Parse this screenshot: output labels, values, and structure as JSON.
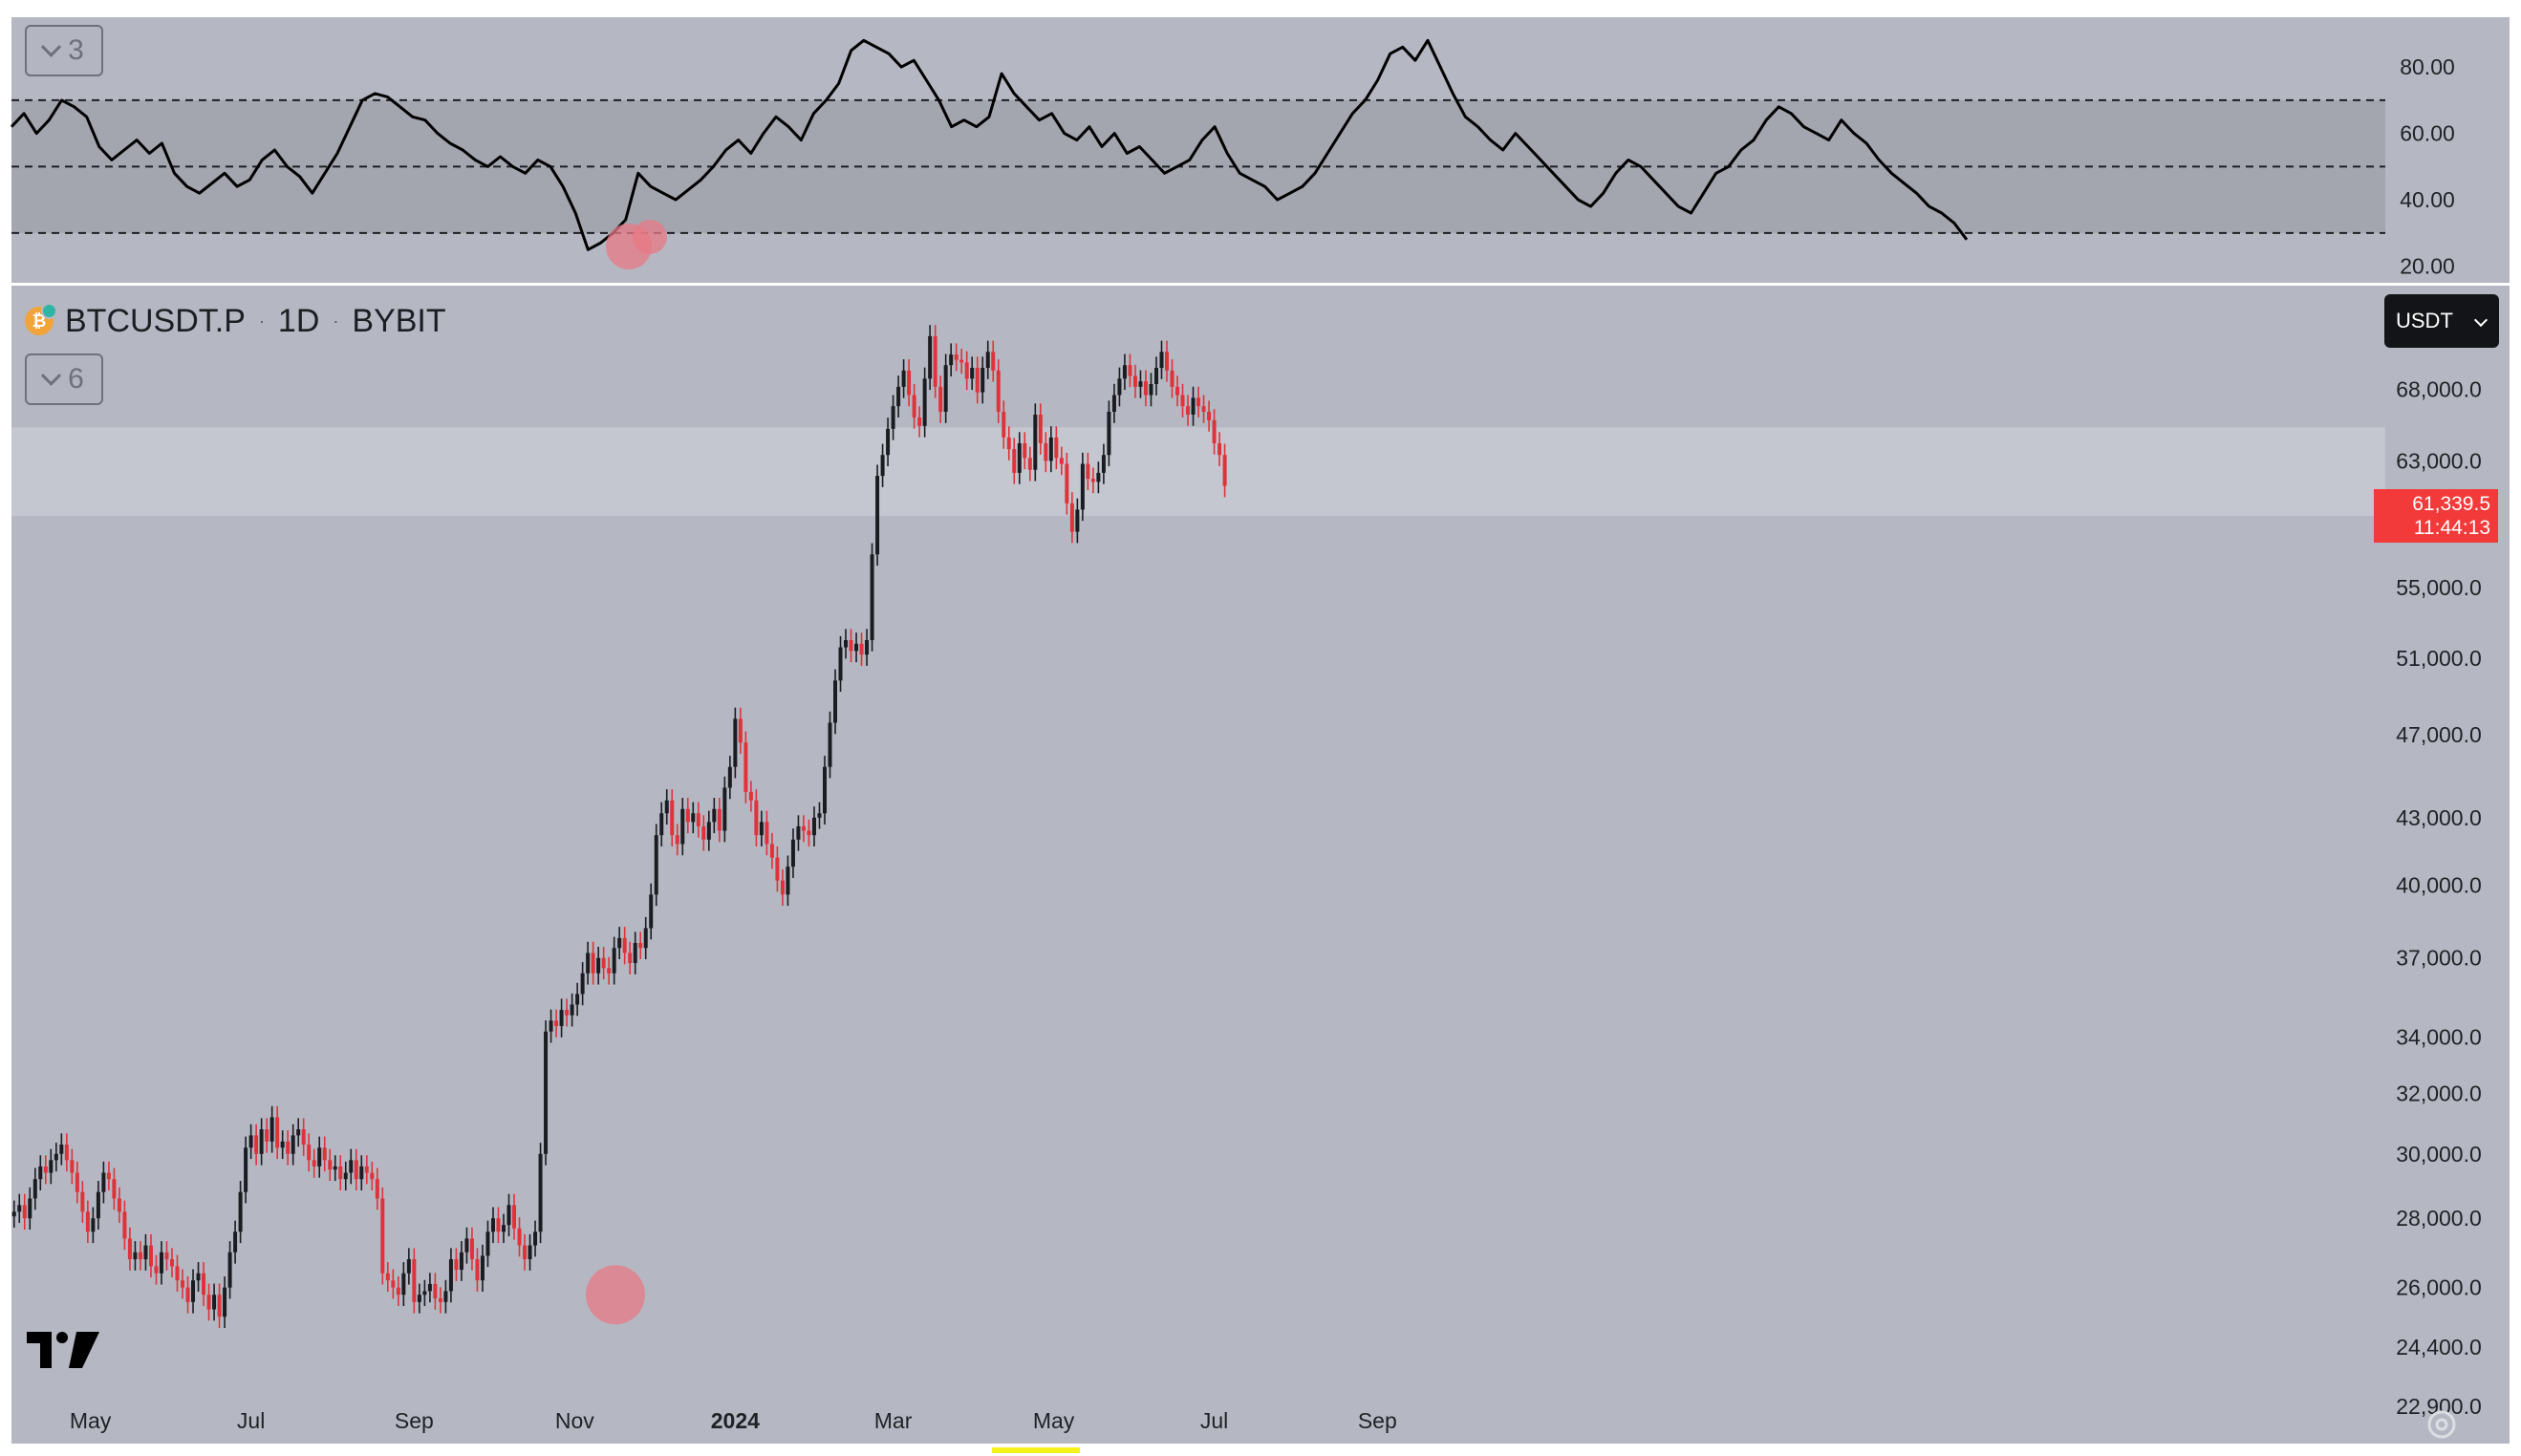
{
  "rsi_panel": {
    "collapse_count": "3",
    "y_ticks": [
      "80.00",
      "60.00",
      "40.00",
      "20.00"
    ],
    "bands": {
      "upper": 70,
      "middle": 50,
      "lower": 30
    }
  },
  "price_panel": {
    "symbol": "BTCUSDT.P",
    "interval": "1D",
    "exchange": "BYBIT",
    "collapse_count": "6",
    "currency": "USDT",
    "y_ticks": [
      "68,000.0",
      "63,000.0",
      "55,000.0",
      "51,000.0",
      "47,000.0",
      "43,000.0",
      "40,000.0",
      "37,000.0",
      "34,000.0",
      "32,000.0",
      "30,000.0",
      "28,000.0",
      "26,000.0",
      "24,400.0",
      "22,900.0"
    ],
    "last_price": "61,339.5",
    "countdown": "11:44:13"
  },
  "time_axis": [
    "May",
    "Jul",
    "Sep",
    "Nov",
    "2024",
    "Mar",
    "May",
    "Jul",
    "Sep"
  ],
  "colors": {
    "background": "#b5b8c2",
    "up_candle": "#1b1c22",
    "down_candle": "#e0323a",
    "rsi_line": "#000000",
    "highlight_zone": "#c7c9d1",
    "price_badge": "#f23a3a",
    "marker": "#e87a86"
  },
  "icons": {
    "logo": "tradingview-logo-icon",
    "settings": "gear-icon",
    "coin": "bitcoin-icon"
  },
  "chart_data": [
    {
      "type": "line",
      "title": "",
      "ylabel": "",
      "ylim": [
        15,
        95
      ],
      "x_start": "2023-04-01",
      "series": [
        {
          "values": [
            62,
            66,
            60,
            64,
            70,
            68,
            65,
            56,
            52,
            55,
            58,
            54,
            57,
            48,
            44,
            42,
            45,
            48,
            44,
            46,
            52,
            55,
            50,
            47,
            42,
            48,
            54,
            62,
            70,
            72,
            71,
            68,
            65,
            64,
            60,
            57,
            55,
            52,
            50,
            53,
            50,
            48,
            52,
            50,
            44,
            36,
            25,
            27,
            30,
            34,
            48,
            44,
            42,
            40,
            43,
            46,
            50,
            55,
            58,
            54,
            60,
            65,
            62,
            58,
            66,
            70,
            75,
            85,
            88,
            86,
            84,
            80,
            82,
            76,
            70,
            62,
            64,
            62,
            65,
            78,
            72,
            68,
            64,
            66,
            60,
            58,
            62,
            56,
            60,
            54,
            56,
            52,
            48,
            50,
            52,
            58,
            62,
            54,
            48,
            46,
            44,
            40,
            42,
            44,
            48,
            54,
            60,
            66,
            70,
            76,
            84,
            86,
            82,
            88,
            80,
            72,
            65,
            62,
            58,
            55,
            60,
            56,
            52,
            48,
            44,
            40,
            38,
            42,
            48,
            52,
            50,
            46,
            42,
            38,
            36,
            42,
            48,
            50,
            55,
            58,
            64,
            68,
            66,
            62,
            60,
            58,
            64,
            60,
            57,
            52,
            48,
            45,
            42,
            38,
            36,
            33,
            28
          ]
        }
      ],
      "reference_lines": [
        70,
        50,
        30
      ]
    },
    {
      "type": "candlestick",
      "title": "BTCUSDT.P · 1D · BYBIT",
      "x_start": "2023-04-01",
      "x_unit": "day",
      "scale": "log",
      "ylim": [
        22000,
        76000
      ],
      "closes": [
        28200,
        28400,
        28000,
        28600,
        29200,
        29600,
        29400,
        29800,
        30000,
        30300,
        29800,
        29400,
        28800,
        28200,
        27600,
        28000,
        28800,
        29400,
        29200,
        28600,
        28200,
        27400,
        26800,
        27000,
        26800,
        27200,
        26600,
        26400,
        27000,
        26800,
        26600,
        26200,
        26000,
        25600,
        26200,
        26400,
        25800,
        25400,
        25800,
        25200,
        26000,
        27000,
        27600,
        28800,
        30200,
        30600,
        30000,
        30800,
        30400,
        31200,
        30200,
        30400,
        30000,
        30600,
        30800,
        30300,
        29800,
        29600,
        30200,
        29800,
        29500,
        29600,
        29200,
        29400,
        29800,
        29200,
        29600,
        29400,
        29200,
        28600,
        26400,
        26200,
        26000,
        25800,
        26400,
        26800,
        25600,
        25800,
        25900,
        26100,
        25700,
        25600,
        25900,
        26800,
        26500,
        27000,
        27400,
        26800,
        26200,
        26900,
        27600,
        28000,
        27600,
        27800,
        28400,
        27700,
        27200,
        26800,
        27200,
        27600,
        30000,
        34200,
        34600,
        34400,
        35000,
        34800,
        35200,
        35600,
        36400,
        37200,
        36400,
        37000,
        36600,
        36400,
        37400,
        37800,
        37200,
        36800,
        37600,
        37400,
        38200,
        39600,
        42200,
        43200,
        43800,
        42200,
        41800,
        43400,
        42800,
        43200,
        42600,
        42000,
        42800,
        43400,
        42400,
        44400,
        45400,
        47800,
        46600,
        44200,
        43800,
        42200,
        42800,
        41800,
        41200,
        40200,
        39600,
        40800,
        42000,
        42600,
        42400,
        42200,
        43000,
        43200,
        45400,
        47600,
        49800,
        51600,
        52000,
        51400,
        51800,
        51200,
        52000,
        57000,
        62000,
        63400,
        65200,
        66800,
        68200,
        69400,
        67600,
        66000,
        65400,
        68800,
        72000,
        68200,
        66400,
        69800,
        70600,
        70200,
        70000,
        68800,
        69600,
        67800,
        69600,
        70800,
        69400,
        66400,
        64600,
        63800,
        62200,
        64200,
        63200,
        62400,
        66200,
        64200,
        63000,
        64600,
        63200,
        62800,
        60200,
        58400,
        59800,
        62800,
        61800,
        61600,
        62200,
        63400,
        66400,
        67600,
        68800,
        69800,
        69000,
        68200,
        68600,
        67600,
        68400,
        69600,
        70800,
        69400,
        68200,
        67600,
        66800,
        66200,
        67400,
        66800,
        66400,
        65800,
        64200,
        63400,
        61339.5
      ]
    }
  ]
}
